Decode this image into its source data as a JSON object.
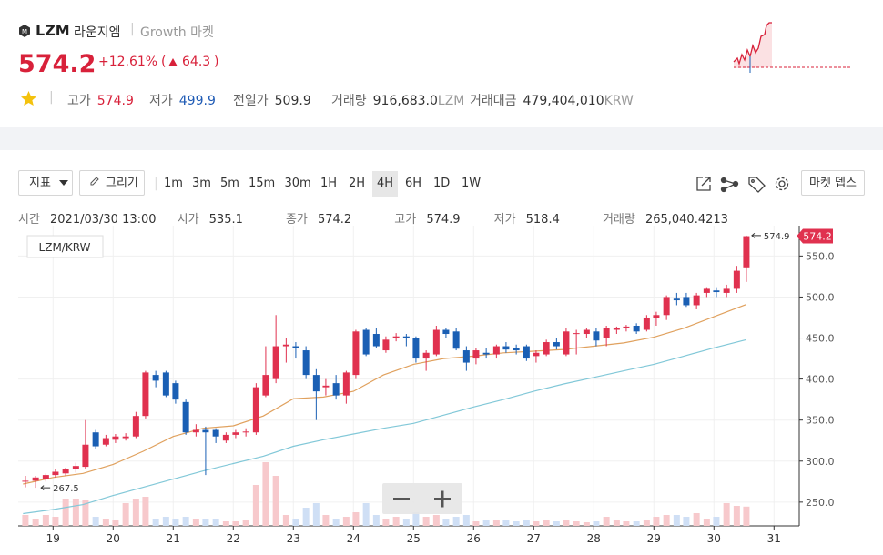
{
  "header": {
    "symbol": "LZM",
    "name": "라운지엠",
    "market": "Growth 마켓",
    "price": "574.2",
    "change_pct": "+12.61%",
    "change": "64.3",
    "stats": [
      {
        "label": "고가",
        "value": "574.9",
        "unit": ""
      },
      {
        "label": "저가",
        "value": "499.9",
        "unit": ""
      },
      {
        "label": "전일가",
        "value": "509.9",
        "unit": ""
      },
      {
        "label": "거래량",
        "value": "916,683.0",
        "unit": "LZM"
      },
      {
        "label": "거래대금",
        "value": "479,404,010",
        "unit": "KRW"
      }
    ]
  },
  "toolbar": {
    "indicator": "지표",
    "draw": "그리기",
    "intervals": [
      "1m",
      "3m",
      "5m",
      "15m",
      "30m",
      "1H",
      "2H",
      "4H",
      "6H",
      "1D",
      "1W"
    ],
    "active_interval_index": 7,
    "depth": "마켓 뎁스"
  },
  "ohlc_info": {
    "time_label": "시간",
    "time": "2021/03/30 13:00",
    "open_label": "시가",
    "close_label": "종가",
    "high_label": "고가",
    "low_label": "저가",
    "volume_label": "거래량",
    "volume": "265,040.4213"
  },
  "chart_data": {
    "type": "candlestick",
    "pair": "LZM/KRW",
    "x": [
      18.54,
      18.71,
      18.88,
      19.04,
      19.21,
      19.38,
      19.54,
      19.71,
      19.88,
      20.04,
      20.21,
      20.38,
      20.54,
      20.71,
      20.88,
      21.04,
      21.21,
      21.38,
      21.54,
      21.71,
      21.88,
      22.04,
      22.21,
      22.38,
      22.54,
      22.71,
      22.88,
      23.04,
      23.21,
      23.38,
      23.54,
      23.71,
      23.88,
      24.04,
      24.21,
      24.38,
      24.54,
      24.71,
      24.88,
      25.04,
      25.21,
      25.38,
      25.54,
      25.71,
      25.88,
      26.04,
      26.21,
      26.38,
      26.54,
      26.71,
      26.88,
      27.04,
      27.21,
      27.38,
      27.54,
      27.71,
      27.88,
      28.04,
      28.21,
      28.38,
      28.54,
      28.71,
      28.88,
      29.04,
      29.21,
      29.38,
      29.54,
      29.71,
      29.88,
      30.04,
      30.21,
      30.38,
      30.54
    ],
    "open": [
      275,
      276,
      278,
      283,
      285,
      290,
      293,
      335,
      320,
      326,
      328,
      330,
      355,
      405,
      408,
      395,
      372,
      335,
      338,
      338,
      325,
      332,
      335,
      335,
      380,
      400,
      440,
      440,
      435,
      405,
      390,
      395,
      380,
      405,
      460,
      455,
      435,
      450,
      452,
      450,
      425,
      430,
      460,
      458,
      435,
      425,
      432,
      430,
      440,
      438,
      440,
      428,
      430,
      445,
      430,
      455,
      455,
      458,
      450,
      460,
      462,
      465,
      460,
      475,
      478,
      498,
      500,
      490,
      505,
      508,
      505,
      510,
      535.1
    ],
    "high": [
      282,
      282,
      285,
      290,
      292,
      298,
      350,
      338,
      332,
      333,
      334,
      360,
      410,
      410,
      410,
      398,
      375,
      345,
      342,
      340,
      335,
      338,
      340,
      395,
      440,
      478,
      450,
      445,
      440,
      412,
      400,
      405,
      410,
      460,
      462,
      462,
      452,
      456,
      455,
      452,
      435,
      465,
      462,
      462,
      440,
      438,
      438,
      442,
      445,
      442,
      442,
      435,
      448,
      450,
      462,
      460,
      462,
      462,
      465,
      464,
      466,
      468,
      478,
      482,
      502,
      505,
      505,
      505,
      512,
      512,
      515,
      538,
      574.9
    ],
    "low": [
      268,
      267.5,
      275,
      280,
      282,
      286,
      290,
      315,
      318,
      322,
      325,
      328,
      352,
      390,
      378,
      370,
      332,
      330,
      283,
      322,
      322,
      328,
      330,
      332,
      378,
      395,
      420,
      425,
      400,
      350,
      380,
      375,
      370,
      400,
      428,
      438,
      432,
      446,
      440,
      420,
      410,
      428,
      450,
      435,
      410,
      418,
      425,
      425,
      432,
      430,
      422,
      420,
      428,
      436,
      428,
      430,
      450,
      440,
      440,
      455,
      458,
      455,
      458,
      465,
      472,
      490,
      488,
      485,
      500,
      500,
      500,
      505,
      518.4
    ],
    "close": [
      276,
      280,
      283,
      287,
      290,
      294,
      320,
      318,
      328,
      330,
      330,
      355,
      408,
      398,
      380,
      375,
      335,
      338,
      335,
      330,
      332,
      335,
      336,
      390,
      405,
      440,
      442,
      438,
      405,
      385,
      392,
      380,
      408,
      458,
      430,
      440,
      448,
      452,
      450,
      425,
      432,
      460,
      455,
      437,
      420,
      435,
      430,
      440,
      436,
      435,
      425,
      432,
      445,
      440,
      458,
      456,
      460,
      447,
      462,
      462,
      464,
      458,
      475,
      478,
      500,
      496,
      490,
      502,
      510,
      506,
      510,
      532,
      574.2
    ],
    "volume": [
      150000,
      100000,
      150000,
      125000,
      375000,
      375000,
      350000,
      125000,
      100000,
      75000,
      312500,
      375000,
      400000,
      100000,
      125000,
      100000,
      125000,
      100000,
      100000,
      100000,
      62500,
      62500,
      75000,
      562500,
      875000,
      687500,
      150000,
      100000,
      250000,
      312500,
      150000,
      100000,
      125000,
      187500,
      312500,
      150000,
      100000,
      125000,
      100000,
      187500,
      125000,
      150000,
      100000,
      125000,
      150000,
      62500,
      75000,
      75000,
      75000,
      62500,
      75000,
      62500,
      75000,
      62500,
      75000,
      62500,
      50000,
      62500,
      125000,
      75000,
      62500,
      62500,
      75000,
      125000,
      150000,
      150000,
      125000,
      175000,
      100000,
      125000,
      312500,
      275000,
      265040.4213
    ],
    "volume_lim": [
      0,
      1000000
    ],
    "up_color": "#e0314f",
    "down_color": "#1a5fb4",
    "up_volume_color": "#f7c9cc",
    "down_volume_color": "#cfdff5",
    "lines": [
      {
        "color": "#e0a15e",
        "x": [
          18.5,
          19,
          19.5,
          20,
          20.5,
          21,
          21.5,
          22,
          22.5,
          23,
          23.5,
          24,
          24.5,
          25,
          25.5,
          26,
          26.5,
          27,
          27.5,
          28,
          28.5,
          29,
          29.5,
          30,
          30.54
        ],
        "values": [
          272,
          280,
          285,
          296,
          312,
          330,
          340,
          343,
          355,
          376,
          378,
          385,
          405,
          418,
          425,
          428,
          432,
          434,
          436,
          440,
          444,
          451,
          462,
          476,
          491
        ]
      },
      {
        "color": "#82c8d8",
        "x": [
          18.5,
          19,
          19.5,
          20,
          20.5,
          21,
          21.5,
          22,
          22.5,
          23,
          23.5,
          24,
          24.5,
          25,
          25.5,
          26,
          26.5,
          27,
          27.5,
          28,
          28.5,
          29,
          29.5,
          30,
          30.54
        ],
        "values": [
          236,
          241,
          247,
          258,
          268,
          278,
          288,
          297,
          306,
          318,
          326,
          333,
          340,
          346,
          356,
          366,
          375,
          385,
          394,
          402,
          410,
          418,
          428,
          438,
          448
        ]
      }
    ],
    "xlim": [
      18.42,
      31.42
    ],
    "xticks": [
      19,
      20,
      21,
      22,
      23,
      24,
      25,
      26,
      27,
      28,
      29,
      30,
      31
    ],
    "ylim": [
      221,
      587
    ],
    "yticks": [
      {
        "value": 250,
        "label": "250.0"
      },
      {
        "value": 300,
        "label": "300.0"
      },
      {
        "value": 350,
        "label": "350.0"
      },
      {
        "value": 400,
        "label": "400.0"
      },
      {
        "value": 450,
        "label": "450.0"
      },
      {
        "value": 500,
        "label": "500.0"
      },
      {
        "value": 550,
        "label": "550.0"
      }
    ],
    "grid": true
  }
}
